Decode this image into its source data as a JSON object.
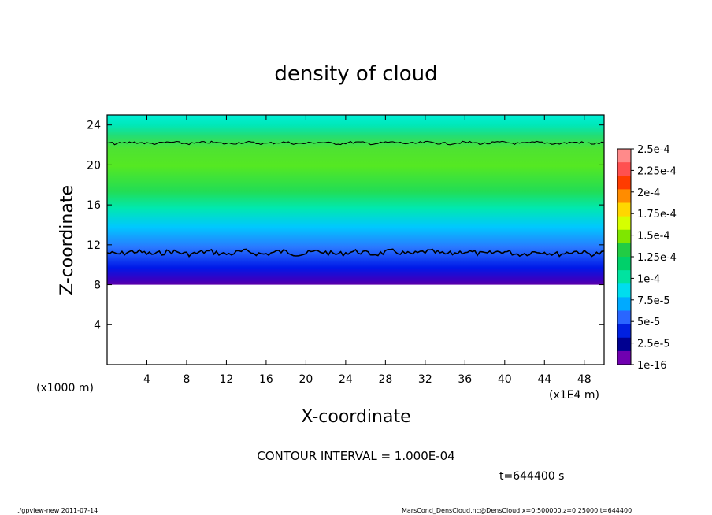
{
  "chart_data": {
    "type": "heatmap",
    "title": "density of cloud",
    "xlabel": "X-coordinate",
    "ylabel": "Z-coordinate",
    "x_unit_label": "(x1E4 m)",
    "y_unit_label": "(x1000 m)",
    "xlim": [
      0,
      50
    ],
    "ylim": [
      0,
      25
    ],
    "x_ticks": [
      4,
      8,
      12,
      16,
      20,
      24,
      28,
      32,
      36,
      40,
      44,
      48
    ],
    "y_ticks": [
      4,
      8,
      12,
      16,
      20,
      24
    ],
    "contour_interval_text": "CONTOUR INTERVAL = 1.000E-04",
    "time_text": "t=644400 s",
    "field_profile": [
      {
        "z": 8.0,
        "value": 2.5e-05
      },
      {
        "z": 9.0,
        "value": 5e-05
      },
      {
        "z": 10.0,
        "value": 7e-05
      },
      {
        "z": 11.0,
        "value": 9e-05
      },
      {
        "z": 12.0,
        "value": 0.0001
      },
      {
        "z": 16.0,
        "value": 0.00011
      },
      {
        "z": 20.0,
        "value": 0.000105
      },
      {
        "z": 22.0,
        "value": 9e-05
      },
      {
        "z": 24.0,
        "value": 8e-05
      },
      {
        "z": 25.0,
        "value": 7.5e-05
      }
    ],
    "contour_levels": [
      0.0001
    ],
    "contour_heights": [
      11.2,
      22.2
    ],
    "colorbar": {
      "labels": [
        "2.5e-4",
        "2.25e-4",
        "2e-4",
        "1.75e-4",
        "1.5e-4",
        "1.25e-4",
        "1e-4",
        "7.5e-5",
        "5e-5",
        "2.5e-5",
        "1e-16"
      ],
      "colors": [
        "#ff8a8a",
        "#ff5050",
        "#ff3c00",
        "#ff8c00",
        "#ffd700",
        "#d6ff00",
        "#7fe600",
        "#22cc44",
        "#00d06a",
        "#00e3a0",
        "#00ddee",
        "#00aaff",
        "#2a66ff",
        "#0020e0",
        "#000090",
        "#7000b0"
      ]
    }
  },
  "footer": {
    "left": "./gpview-new  2011-07-14",
    "right": "MarsCond_DensCloud.nc@DensCloud,x=0:500000,z=0:25000,t=644400"
  }
}
